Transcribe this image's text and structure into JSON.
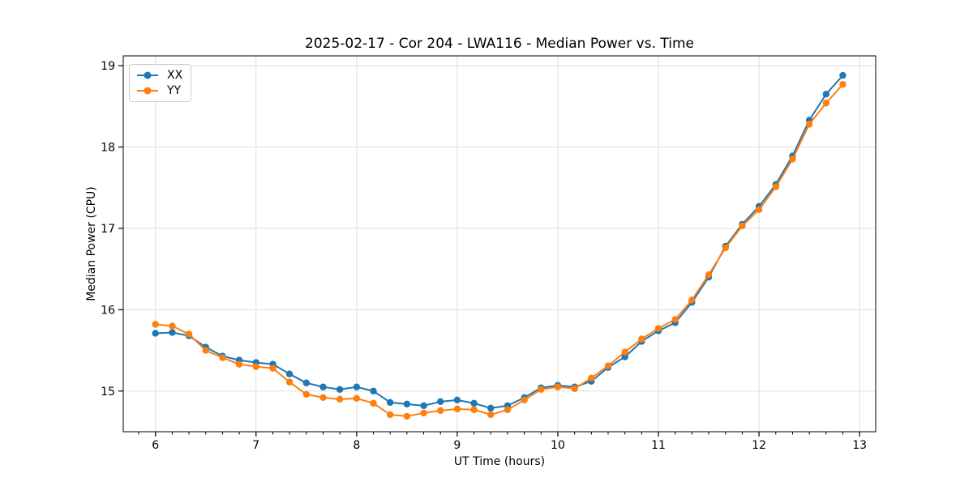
{
  "figure_background": "#ffffff",
  "chart_data": {
    "type": "line",
    "title": "2025-02-17 - Cor 204 - LWA116 - Median Power vs. Time",
    "xlabel": "UT Time (hours)",
    "ylabel": "Median Power (CPU)",
    "xlim": [
      5.68,
      13.16
    ],
    "ylim": [
      14.5,
      19.12
    ],
    "xticks": [
      6,
      7,
      8,
      9,
      10,
      11,
      12,
      13
    ],
    "yticks": [
      15,
      16,
      17,
      18,
      19
    ],
    "x_minor_tick_step": 0.166667,
    "grid": true,
    "grid_color": "#dedede",
    "spine_color": "#000000",
    "legend_position": "upper left",
    "marker": "circle",
    "x": [
      6.0,
      6.167,
      6.333,
      6.5,
      6.667,
      6.833,
      7.0,
      7.167,
      7.333,
      7.5,
      7.667,
      7.833,
      8.0,
      8.167,
      8.333,
      8.5,
      8.667,
      8.833,
      9.0,
      9.167,
      9.333,
      9.5,
      9.667,
      9.833,
      10.0,
      10.167,
      10.333,
      10.5,
      10.667,
      10.833,
      11.0,
      11.167,
      11.333,
      11.5,
      11.667,
      11.833,
      12.0,
      12.167,
      12.333,
      12.5,
      12.667,
      12.833
    ],
    "series": [
      {
        "name": "XX",
        "color": "#1f77b4",
        "values": [
          15.71,
          15.72,
          15.68,
          15.54,
          15.43,
          15.38,
          15.35,
          15.33,
          15.21,
          15.1,
          15.05,
          15.02,
          15.05,
          15.0,
          14.86,
          14.84,
          14.82,
          14.87,
          14.89,
          14.85,
          14.79,
          14.82,
          14.92,
          15.04,
          15.07,
          15.05,
          15.12,
          15.29,
          15.42,
          15.61,
          15.74,
          15.84,
          16.09,
          16.4,
          16.78,
          17.05,
          17.27,
          17.54,
          17.89,
          18.33,
          18.65,
          18.88
        ]
      },
      {
        "name": "YY",
        "color": "#ff7f0e",
        "values": [
          15.82,
          15.8,
          15.7,
          15.5,
          15.41,
          15.33,
          15.3,
          15.28,
          15.11,
          14.96,
          14.92,
          14.9,
          14.91,
          14.85,
          14.71,
          14.69,
          14.73,
          14.76,
          14.78,
          14.77,
          14.71,
          14.77,
          14.89,
          15.02,
          15.05,
          15.03,
          15.16,
          15.31,
          15.48,
          15.64,
          15.77,
          15.88,
          16.12,
          16.43,
          16.76,
          17.03,
          17.23,
          17.51,
          17.85,
          18.28,
          18.54,
          18.77
        ]
      }
    ]
  }
}
